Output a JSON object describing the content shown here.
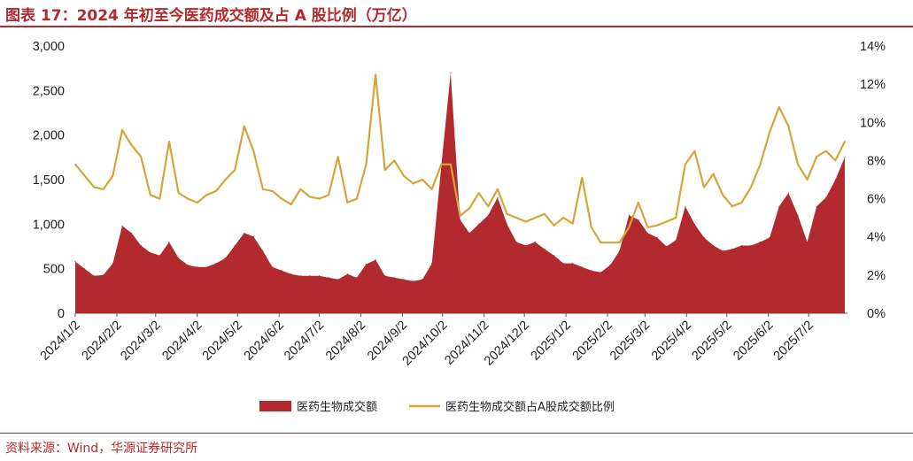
{
  "title": "图表 17：2024 年初至今医药成交额及占 A 股比例（万亿）",
  "source": "资料来源：Wind，华源证券研究所",
  "chart_data": {
    "type": "area",
    "xlabel": "",
    "ylabel": "",
    "ylim": [
      0,
      3000
    ],
    "y2lim": [
      0,
      14
    ],
    "yticks": [
      "0",
      "500",
      "1,000",
      "1,500",
      "2,000",
      "2,500",
      "3,000"
    ],
    "y2ticks": [
      "0%",
      "2%",
      "4%",
      "6%",
      "8%",
      "10%",
      "12%",
      "14%"
    ],
    "xticks": [
      "2024/1/2",
      "2024/2/2",
      "2024/3/2",
      "2024/4/2",
      "2024/5/2",
      "2024/6/2",
      "2024/7/2",
      "2024/8/2",
      "2024/9/2",
      "2024/10/2",
      "2024/11/2",
      "2024/12/2",
      "2025/1/2",
      "2025/2/2",
      "2025/3/2",
      "2025/4/2",
      "2025/5/2",
      "2025/6/2",
      "2025/7/2"
    ],
    "legend_position": "bottom",
    "colors": {
      "area": "#b22a2e",
      "line": "#d7a43a",
      "accent": "#b22a2e"
    },
    "series": [
      {
        "name": "医药生物成交额",
        "type": "area",
        "axis": "left",
        "x": [
          "2024/1/2",
          "2024/1/9",
          "2024/1/16",
          "2024/1/23",
          "2024/1/30",
          "2024/2/6",
          "2024/2/13",
          "2024/2/20",
          "2024/2/27",
          "2024/3/5",
          "2024/3/12",
          "2024/3/19",
          "2024/3/26",
          "2024/4/2",
          "2024/4/9",
          "2024/4/16",
          "2024/4/23",
          "2024/4/30",
          "2024/5/7",
          "2024/5/14",
          "2024/5/21",
          "2024/5/28",
          "2024/6/4",
          "2024/6/11",
          "2024/6/18",
          "2024/6/25",
          "2024/7/2",
          "2024/7/9",
          "2024/7/16",
          "2024/7/23",
          "2024/7/30",
          "2024/8/6",
          "2024/8/13",
          "2024/8/20",
          "2024/8/27",
          "2024/9/3",
          "2024/9/10",
          "2024/9/17",
          "2024/9/24",
          "2024/10/1",
          "2024/10/8",
          "2024/10/15",
          "2024/10/22",
          "2024/10/29",
          "2024/11/5",
          "2024/11/12",
          "2024/11/19",
          "2024/11/26",
          "2024/12/3",
          "2024/12/10",
          "2024/12/17",
          "2024/12/24",
          "2024/12/31",
          "2025/1/7",
          "2025/1/14",
          "2025/1/21",
          "2025/1/28",
          "2025/2/4",
          "2025/2/11",
          "2025/2/18",
          "2025/2/25",
          "2025/3/4",
          "2025/3/11",
          "2025/3/18",
          "2025/3/25",
          "2025/4/1",
          "2025/4/8",
          "2025/4/15",
          "2025/4/22",
          "2025/4/29",
          "2025/5/6",
          "2025/5/13",
          "2025/5/20",
          "2025/5/27",
          "2025/6/3",
          "2025/6/10",
          "2025/6/17",
          "2025/6/24",
          "2025/7/1",
          "2025/7/8",
          "2025/7/15",
          "2025/7/22",
          "2025/7/29"
        ],
        "values": [
          580,
          500,
          420,
          430,
          560,
          980,
          900,
          760,
          680,
          650,
          800,
          620,
          540,
          520,
          520,
          560,
          620,
          760,
          900,
          860,
          700,
          520,
          480,
          440,
          420,
          420,
          420,
          400,
          380,
          440,
          400,
          550,
          600,
          420,
          400,
          380,
          360,
          380,
          560,
          1650,
          2700,
          1050,
          900,
          1000,
          1100,
          1300,
          1000,
          800,
          760,
          800,
          720,
          650,
          560,
          560,
          520,
          480,
          460,
          540,
          700,
          1100,
          1050,
          900,
          850,
          750,
          820,
          1200,
          1000,
          850,
          760,
          700,
          720,
          760,
          760,
          800,
          850,
          1200,
          1350,
          1100,
          800,
          1200,
          1300,
          1500,
          1750
        ]
      },
      {
        "name": "医药生物成交额占A股成交额比例",
        "type": "line",
        "axis": "right",
        "x": [
          "2024/1/2",
          "2024/1/9",
          "2024/1/16",
          "2024/1/23",
          "2024/1/30",
          "2024/2/6",
          "2024/2/13",
          "2024/2/20",
          "2024/2/27",
          "2024/3/5",
          "2024/3/12",
          "2024/3/19",
          "2024/3/26",
          "2024/4/2",
          "2024/4/9",
          "2024/4/16",
          "2024/4/23",
          "2024/4/30",
          "2024/5/7",
          "2024/5/14",
          "2024/5/21",
          "2024/5/28",
          "2024/6/4",
          "2024/6/11",
          "2024/6/18",
          "2024/6/25",
          "2024/7/2",
          "2024/7/9",
          "2024/7/16",
          "2024/7/23",
          "2024/7/30",
          "2024/8/6",
          "2024/8/13",
          "2024/8/20",
          "2024/8/27",
          "2024/9/3",
          "2024/9/10",
          "2024/9/17",
          "2024/9/24",
          "2024/10/1",
          "2024/10/8",
          "2024/10/15",
          "2024/10/22",
          "2024/10/29",
          "2024/11/5",
          "2024/11/12",
          "2024/11/19",
          "2024/11/26",
          "2024/12/3",
          "2024/12/10",
          "2024/12/17",
          "2024/12/24",
          "2024/12/31",
          "2025/1/7",
          "2025/1/14",
          "2025/1/21",
          "2025/1/28",
          "2025/2/4",
          "2025/2/11",
          "2025/2/18",
          "2025/2/25",
          "2025/3/4",
          "2025/3/11",
          "2025/3/18",
          "2025/3/25",
          "2025/4/1",
          "2025/4/8",
          "2025/4/15",
          "2025/4/22",
          "2025/4/29",
          "2025/5/6",
          "2025/5/13",
          "2025/5/20",
          "2025/5/27",
          "2025/6/3",
          "2025/6/10",
          "2025/6/17",
          "2025/6/24",
          "2025/7/1",
          "2025/7/8",
          "2025/7/15",
          "2025/7/22",
          "2025/7/29"
        ],
        "values": [
          7.8,
          7.2,
          6.6,
          6.5,
          7.2,
          9.6,
          8.8,
          8.2,
          6.2,
          6.0,
          9.0,
          6.3,
          6.0,
          5.8,
          6.2,
          6.4,
          7.0,
          7.5,
          9.8,
          8.5,
          6.5,
          6.4,
          6.0,
          5.7,
          6.5,
          6.1,
          6.0,
          6.2,
          8.2,
          5.8,
          6.0,
          7.8,
          12.5,
          7.5,
          8.0,
          7.2,
          6.8,
          7.0,
          6.5,
          7.8,
          7.8,
          5.1,
          5.5,
          6.3,
          5.6,
          6.5,
          5.2,
          5.0,
          4.8,
          5.0,
          5.2,
          4.6,
          5.0,
          4.7,
          7.1,
          4.5,
          3.7,
          3.7,
          3.7,
          4.5,
          5.8,
          4.5,
          4.6,
          4.8,
          5.0,
          7.8,
          8.5,
          6.6,
          7.3,
          6.2,
          5.6,
          5.8,
          6.6,
          7.8,
          9.5,
          10.8,
          9.8,
          7.8,
          7.0,
          8.2,
          8.5,
          8.0,
          9.0
        ]
      }
    ]
  }
}
